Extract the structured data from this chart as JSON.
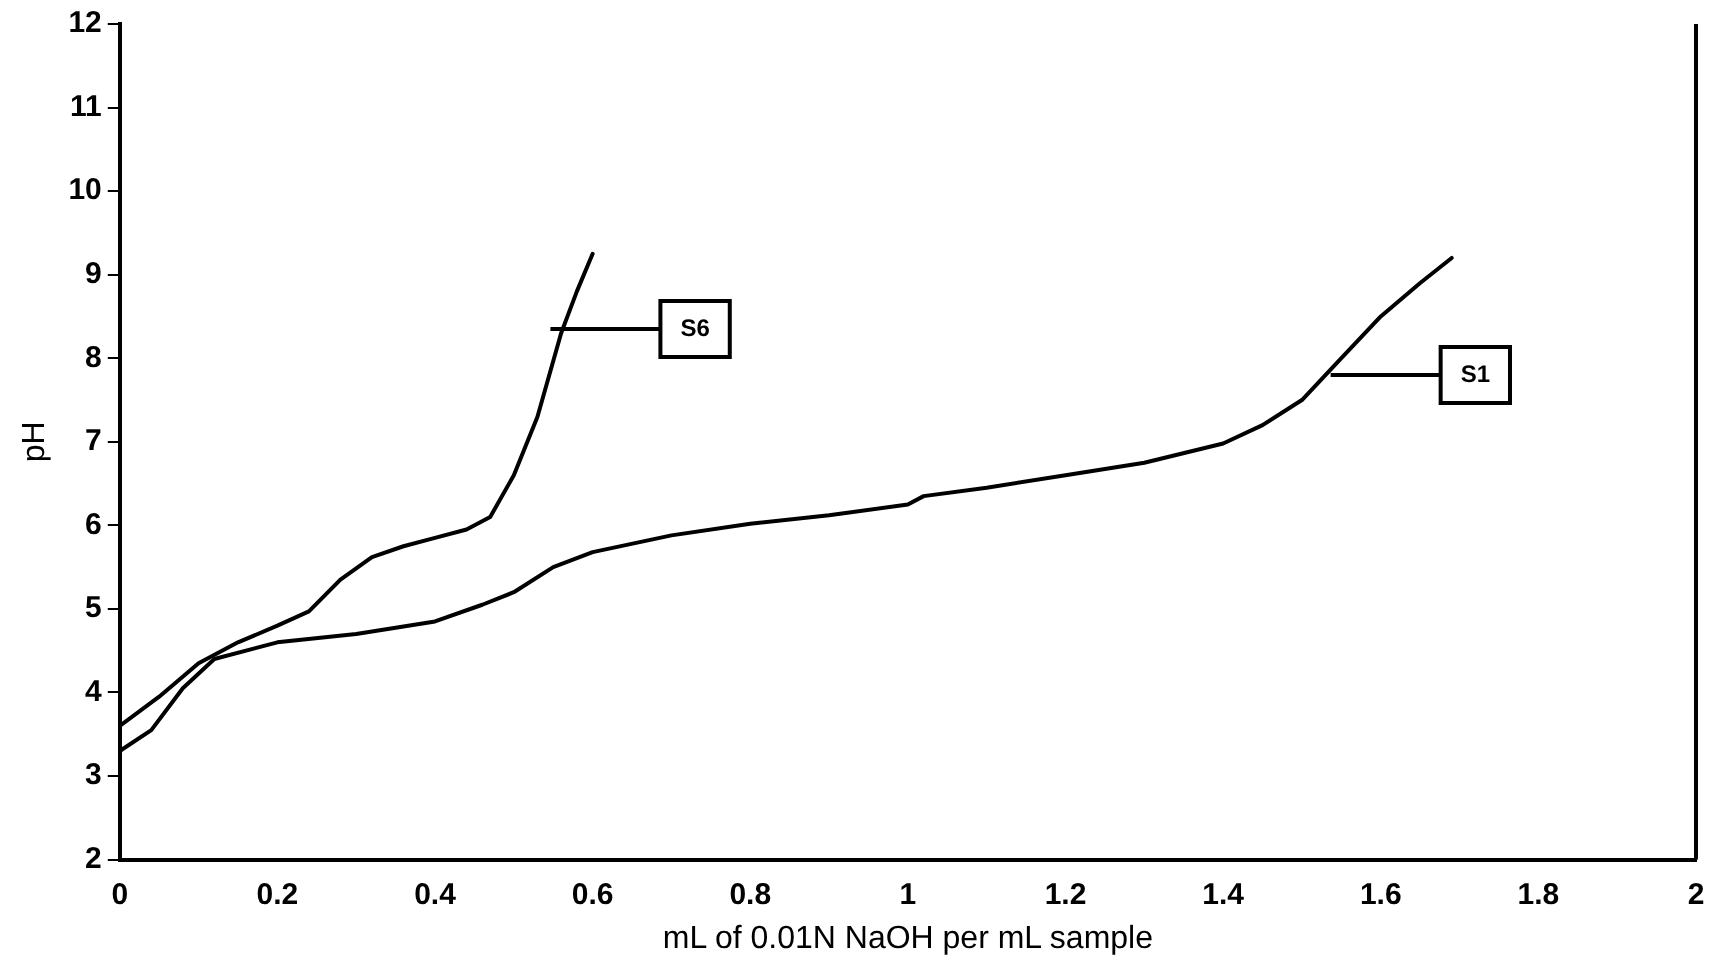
{
  "chart_data": {
    "type": "line",
    "xlabel": "mL of 0.01N NaOH per mL sample",
    "ylabel": "pH",
    "xlim": [
      0,
      2
    ],
    "xticks": [
      0,
      0.2,
      0.4,
      0.6,
      0.8,
      1,
      1.2,
      1.4,
      1.6,
      1.8,
      2
    ],
    "ylim": [
      2,
      12
    ],
    "yticks": [
      2,
      3,
      4,
      5,
      6,
      7,
      8,
      9,
      10,
      11,
      12
    ],
    "grid": false,
    "legend": false,
    "marker": "none",
    "line_style": "solid",
    "series": [
      {
        "color": "#000000",
        "x": [
          0,
          0.05,
          0.1,
          0.15,
          0.2,
          0.24,
          0.28,
          0.32,
          0.36,
          0.4,
          0.44,
          0.47,
          0.5,
          0.53,
          0.56,
          0.58,
          0.6
        ],
        "values": [
          3.6,
          3.95,
          4.35,
          4.6,
          4.8,
          4.97,
          5.35,
          5.62,
          5.75,
          5.85,
          5.95,
          6.1,
          6.6,
          7.3,
          8.3,
          8.8,
          9.25
        ]
      },
      {
        "color": "#000000",
        "x": [
          0,
          0.04,
          0.08,
          0.12,
          0.2,
          0.3,
          0.4,
          0.46,
          0.5,
          0.55,
          0.6,
          0.7,
          0.8,
          0.9,
          1,
          1.02,
          1.1,
          1.2,
          1.3,
          1.4,
          1.45,
          1.5,
          1.55,
          1.6,
          1.65,
          1.69
        ],
        "values": [
          3.3,
          3.55,
          4.05,
          4.4,
          4.6,
          4.7,
          4.85,
          5.05,
          5.2,
          5.5,
          5.68,
          5.88,
          6.02,
          6.12,
          6.25,
          6.35,
          6.45,
          6.6,
          6.75,
          6.98,
          7.2,
          7.5,
          8,
          8.5,
          8.9,
          9.2
        ]
      }
    ],
    "annotations": [
      {
        "text": "S6",
        "x": 0.73,
        "y": 8.35
      },
      {
        "text": "S1",
        "x": 1.72,
        "y": 7.8
      }
    ]
  }
}
